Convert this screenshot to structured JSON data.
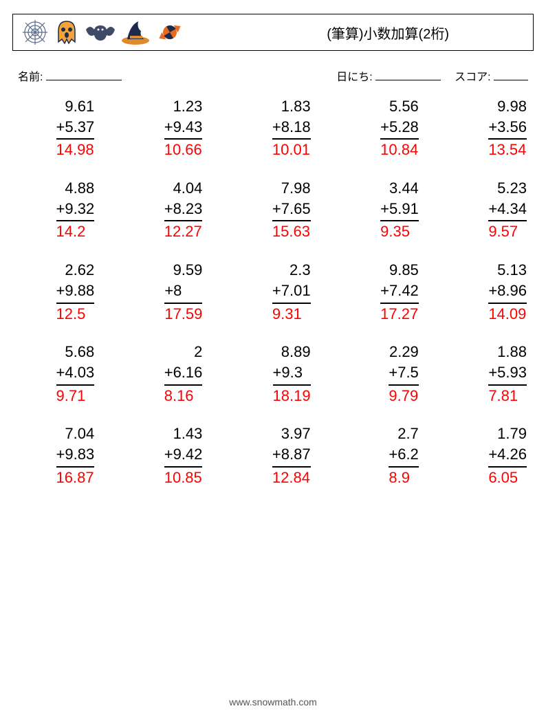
{
  "header": {
    "title": "(筆算)小数加算(2桁)",
    "icon_colors": {
      "web_stroke": "#5a6b8c",
      "ghost_body": "#f2a33c",
      "ghost_eye": "#1c2b4a",
      "bat_body": "#3e4a66",
      "hat_brim": "#e08a2c",
      "hat_top": "#1c2b4a",
      "hat_band": "#e08a2c",
      "candy_wrap": "#e86a1f",
      "candy_swirl": "#1c2b4a"
    }
  },
  "labels": {
    "name": "名前:",
    "date": "日にち:",
    "score": "スコア:",
    "name_line_width": 110,
    "date_line_width": 95,
    "score_line_width": 50
  },
  "style": {
    "answer_color": "#ff0000",
    "text_color": "#000000",
    "font_size_problem": 22
  },
  "problems": [
    [
      {
        "a": "9.61",
        "b": "+5.37",
        "ans": "14.98"
      },
      {
        "a": "1.23",
        "b": "+9.43",
        "ans": "10.66"
      },
      {
        "a": "1.83",
        "b": "+8.18",
        "ans": "10.01"
      },
      {
        "a": "5.56",
        "b": "+5.28",
        "ans": "10.84"
      },
      {
        "a": "9.98",
        "b": "+3.56",
        "ans": "13.54"
      }
    ],
    [
      {
        "a": "4.88",
        "b": "+9.32",
        "ans": "14.2"
      },
      {
        "a": "4.04",
        "b": "+8.23",
        "ans": "12.27"
      },
      {
        "a": "7.98",
        "b": "+7.65",
        "ans": "15.63"
      },
      {
        "a": "3.44",
        "b": "+5.91",
        "ans": "9.35"
      },
      {
        "a": "5.23",
        "b": "+4.34",
        "ans": "9.57"
      }
    ],
    [
      {
        "a": "2.62",
        "b": "+9.88",
        "ans": "12.5"
      },
      {
        "a": "9.59",
        "b": "+8",
        "ans": "17.59"
      },
      {
        "a": "2.3",
        "b": "+7.01",
        "ans": "9.31"
      },
      {
        "a": "9.85",
        "b": "+7.42",
        "ans": "17.27"
      },
      {
        "a": "5.13",
        "b": "+8.96",
        "ans": "14.09"
      }
    ],
    [
      {
        "a": "5.68",
        "b": "+4.03",
        "ans": "9.71"
      },
      {
        "a": "2",
        "b": "+6.16",
        "ans": "8.16"
      },
      {
        "a": "8.89",
        "b": "+9.3",
        "ans": "18.19"
      },
      {
        "a": "2.29",
        "b": "+7.5",
        "ans": "9.79"
      },
      {
        "a": "1.88",
        "b": "+5.93",
        "ans": "7.81"
      }
    ],
    [
      {
        "a": "7.04",
        "b": "+9.83",
        "ans": "16.87"
      },
      {
        "a": "1.43",
        "b": "+9.42",
        "ans": "10.85"
      },
      {
        "a": "3.97",
        "b": "+8.87",
        "ans": "12.84"
      },
      {
        "a": "2.7",
        "b": "+6.2",
        "ans": "8.9"
      },
      {
        "a": "1.79",
        "b": "+4.26",
        "ans": "6.05"
      }
    ]
  ],
  "footer": {
    "url": "www.snowmath.com"
  }
}
